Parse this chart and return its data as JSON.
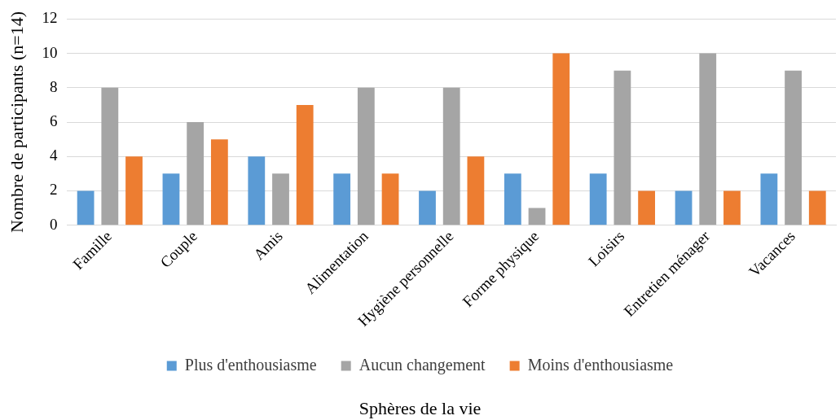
{
  "chart_data": {
    "type": "bar",
    "xlabel": "Sphères de la vie",
    "ylabel": "Nombre de participants (n=14)",
    "categories": [
      "Famille",
      "Couple",
      "Amis",
      "Alimentation",
      "Hygiène personnelle",
      "Forme physique",
      "Loisirs",
      "Entretien ménager",
      "Vacances"
    ],
    "series": [
      {
        "name": "Plus d'enthousiasme",
        "color": "#5b9bd5",
        "values": [
          2,
          3,
          4,
          3,
          2,
          3,
          3,
          2,
          3
        ]
      },
      {
        "name": "Aucun changement",
        "color": "#a5a5a5",
        "values": [
          8,
          6,
          3,
          8,
          8,
          1,
          9,
          10,
          9
        ]
      },
      {
        "name": "Moins d'enthousiasme",
        "color": "#ed7d31",
        "values": [
          4,
          5,
          7,
          3,
          4,
          10,
          2,
          2,
          2
        ]
      }
    ],
    "ylim": [
      0,
      12
    ],
    "yticks": [
      0,
      2,
      4,
      6,
      8,
      10,
      12
    ],
    "grid": "y",
    "legend": "bottom"
  }
}
